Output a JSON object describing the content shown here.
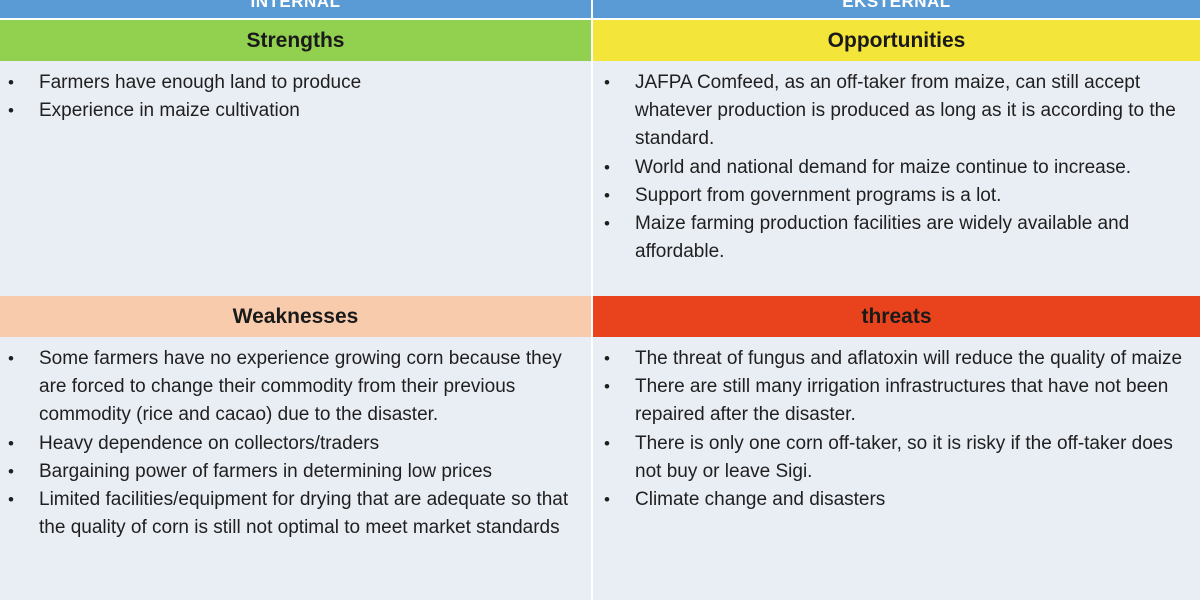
{
  "band": {
    "internal_label": "INTERNAL",
    "external_label": "EKSTERNAL"
  },
  "headers": {
    "strengths": "Strengths",
    "opportunities": "Opportunities",
    "weaknesses": "Weaknesses",
    "threats": "threats"
  },
  "strengths": [
    "Farmers have enough land to produce",
    "Experience in maize cultivation"
  ],
  "opportunities": [
    "JAFPA Comfeed, as an off-taker from maize, can still accept whatever production is produced as long as it is according to the standard.",
    "World and national demand for maize continue to increase.",
    "Support from government programs is a lot.",
    "Maize farming production facilities are widely available and affordable."
  ],
  "weaknesses": [
    "Some farmers have no experience growing corn because they are forced to change their commodity from their previous commodity (rice and cacao) due to the disaster.",
    "Heavy dependence on collectors/traders",
    "Bargaining power of farmers in determining low prices",
    "Limited facilities/equipment for drying that are adequate so that the quality of corn is still not optimal to meet market standards"
  ],
  "threats": [
    "The threat of fungus and aflatoxin will reduce the quality of maize",
    "There are still many irrigation infrastructures that have not been repaired after the disaster.",
    "There is only one corn off-taker, so it is risky if the off-taker does not buy or leave Sigi.",
    "Climate change and disasters"
  ],
  "colors": {
    "band": "#5b9bd5",
    "strengths": "#92d050",
    "opportunities": "#f3e53a",
    "weaknesses": "#f8cbad",
    "threats": "#e8431c",
    "cell_bg": "#e9edf4"
  }
}
